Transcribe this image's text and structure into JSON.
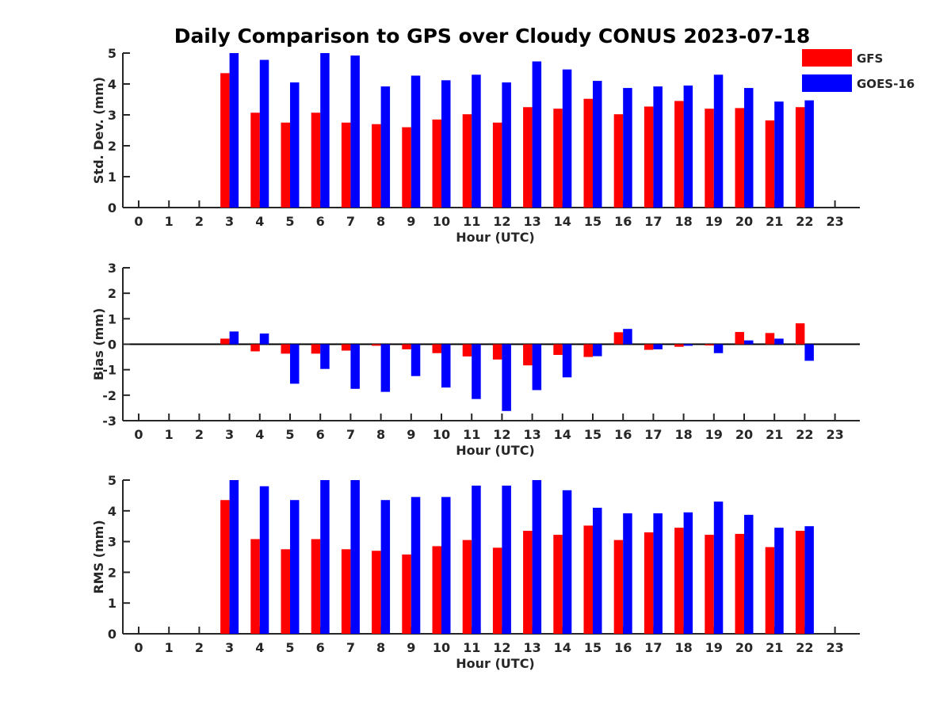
{
  "figure": {
    "title": "Daily Comparison to GPS over Cloudy CONUS 2023-07-18"
  },
  "legend": {
    "placement": "top-right",
    "entries": [
      {
        "name": "GFS",
        "color": "#ff0000"
      },
      {
        "name": "GOES-16",
        "color": "#0000ff"
      }
    ]
  },
  "chart_data": [
    {
      "type": "bar",
      "xlabel": "Hour (UTC)",
      "ylabel": "Std. Dev. (mm)",
      "x": [
        0,
        1,
        2,
        3,
        4,
        5,
        6,
        7,
        8,
        9,
        10,
        11,
        12,
        13,
        14,
        15,
        16,
        17,
        18,
        19,
        20,
        21,
        22,
        23
      ],
      "xlim": [
        -0.5,
        23.5
      ],
      "ylim": [
        0,
        5
      ],
      "yticks": [
        0,
        1,
        2,
        3,
        4,
        5
      ],
      "grid": false,
      "series": [
        {
          "name": "GFS",
          "color": "#ff0000",
          "values": [
            null,
            null,
            null,
            4.35,
            3.07,
            2.75,
            3.07,
            2.75,
            2.7,
            2.6,
            2.85,
            3.02,
            2.75,
            3.25,
            3.2,
            3.52,
            3.02,
            3.27,
            3.45,
            3.2,
            3.22,
            2.82,
            3.25,
            null
          ]
        },
        {
          "name": "GOES-16",
          "color": "#0000ff",
          "values": [
            null,
            null,
            null,
            5.0,
            4.78,
            4.05,
            5.0,
            4.92,
            3.92,
            4.27,
            4.12,
            4.3,
            4.05,
            4.73,
            4.47,
            4.1,
            3.87,
            3.92,
            3.95,
            4.3,
            3.87,
            3.43,
            3.47,
            null
          ]
        }
      ]
    },
    {
      "type": "bar",
      "xlabel": "Hour (UTC)",
      "ylabel": "Bias (mm)",
      "x": [
        0,
        1,
        2,
        3,
        4,
        5,
        6,
        7,
        8,
        9,
        10,
        11,
        12,
        13,
        14,
        15,
        16,
        17,
        18,
        19,
        20,
        21,
        22,
        23
      ],
      "xlim": [
        -0.5,
        23.5
      ],
      "ylim": [
        -3,
        3
      ],
      "yticks": [
        -3,
        -2,
        -1,
        0,
        1,
        2,
        3
      ],
      "zero_line": true,
      "grid": false,
      "series": [
        {
          "name": "GFS",
          "color": "#ff0000",
          "values": [
            null,
            null,
            null,
            0.22,
            -0.28,
            -0.37,
            -0.37,
            -0.25,
            -0.06,
            -0.2,
            -0.35,
            -0.48,
            -0.6,
            -0.83,
            -0.42,
            -0.5,
            0.47,
            -0.22,
            -0.1,
            -0.05,
            0.48,
            0.44,
            0.82,
            null
          ]
        },
        {
          "name": "GOES-16",
          "color": "#0000ff",
          "values": [
            null,
            null,
            null,
            0.5,
            0.42,
            -1.55,
            -0.97,
            -1.75,
            -1.87,
            -1.25,
            -1.7,
            -2.15,
            -2.62,
            -1.8,
            -1.3,
            -0.47,
            0.6,
            -0.2,
            -0.06,
            -0.35,
            0.15,
            0.22,
            -0.65,
            null
          ]
        }
      ]
    },
    {
      "type": "bar",
      "xlabel": "Hour (UTC)",
      "ylabel": "RMS (mm)",
      "x": [
        0,
        1,
        2,
        3,
        4,
        5,
        6,
        7,
        8,
        9,
        10,
        11,
        12,
        13,
        14,
        15,
        16,
        17,
        18,
        19,
        20,
        21,
        22,
        23
      ],
      "xlim": [
        -0.5,
        23.5
      ],
      "ylim": [
        0,
        5
      ],
      "yticks": [
        0,
        1,
        2,
        3,
        4,
        5
      ],
      "grid": false,
      "series": [
        {
          "name": "GFS",
          "color": "#ff0000",
          "values": [
            null,
            null,
            null,
            4.35,
            3.08,
            2.75,
            3.08,
            2.75,
            2.7,
            2.58,
            2.85,
            3.05,
            2.8,
            3.35,
            3.22,
            3.52,
            3.05,
            3.3,
            3.45,
            3.22,
            3.25,
            2.82,
            3.35,
            null
          ]
        },
        {
          "name": "GOES-16",
          "color": "#0000ff",
          "values": [
            null,
            null,
            null,
            5.0,
            4.8,
            4.35,
            5.0,
            5.0,
            4.35,
            4.45,
            4.45,
            4.82,
            4.82,
            5.0,
            4.67,
            4.1,
            3.92,
            3.92,
            3.95,
            4.3,
            3.87,
            3.45,
            3.5,
            null
          ]
        }
      ]
    }
  ]
}
